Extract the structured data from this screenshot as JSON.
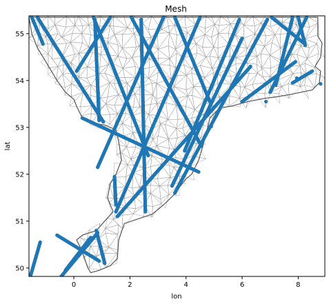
{
  "chart_data": {
    "type": "scatter",
    "title": "Mesh",
    "xlabel": "lon",
    "ylabel": "lat",
    "xlim": [
      -1.6,
      8.95
    ],
    "ylim": [
      49.82,
      55.38
    ],
    "xticks": [
      0,
      2,
      4,
      6,
      8
    ],
    "yticks": [
      50,
      51,
      52,
      53,
      54,
      55
    ],
    "grid": false,
    "colors": {
      "points": "#1f77b4",
      "mesh": "#999999",
      "coast": "#555555"
    },
    "coastline": [
      [
        -1.6,
        55.35
      ],
      [
        8.7,
        55.35
      ],
      [
        8.7,
        54.95
      ],
      [
        8.85,
        54.8
      ],
      [
        8.8,
        54.5
      ],
      [
        8.6,
        54.3
      ],
      [
        8.8,
        54.2
      ],
      [
        8.75,
        53.95
      ],
      [
        8.5,
        53.8
      ],
      [
        8.1,
        53.75
      ],
      [
        7.7,
        53.7
      ],
      [
        7.2,
        53.65
      ],
      [
        6.8,
        53.62
      ],
      [
        6.2,
        53.55
      ],
      [
        5.6,
        53.45
      ],
      [
        5.2,
        53.42
      ],
      [
        4.85,
        53.2
      ],
      [
        4.75,
        52.95
      ],
      [
        4.6,
        52.6
      ],
      [
        4.45,
        52.3
      ],
      [
        4.2,
        52.0
      ],
      [
        4.0,
        51.9
      ],
      [
        3.8,
        51.75
      ],
      [
        3.55,
        51.55
      ],
      [
        3.2,
        51.35
      ],
      [
        2.8,
        51.15
      ],
      [
        2.3,
        51.05
      ],
      [
        1.8,
        50.95
      ],
      [
        1.6,
        50.6
      ],
      [
        1.55,
        50.2
      ],
      [
        1.3,
        50.05
      ],
      [
        0.9,
        49.95
      ],
      [
        0.6,
        49.9
      ],
      [
        0.5,
        50.0
      ],
      [
        0.3,
        50.35
      ],
      [
        0.1,
        50.6
      ],
      [
        0.3,
        50.7
      ],
      [
        0.8,
        50.8
      ],
      [
        1.1,
        51.0
      ],
      [
        1.4,
        51.2
      ],
      [
        1.2,
        51.5
      ],
      [
        1.3,
        51.8
      ],
      [
        1.5,
        52.0
      ],
      [
        1.7,
        52.3
      ],
      [
        1.6,
        52.7
      ],
      [
        1.5,
        52.95
      ],
      [
        1.1,
        53.05
      ],
      [
        0.6,
        53.1
      ],
      [
        0.3,
        53.2
      ],
      [
        0.1,
        53.45
      ],
      [
        0.0,
        53.6
      ],
      [
        -0.3,
        53.75
      ],
      [
        -0.6,
        54.0
      ],
      [
        -1.0,
        54.4
      ],
      [
        -1.3,
        54.7
      ],
      [
        -1.5,
        55.0
      ],
      [
        -1.6,
        55.35
      ]
    ],
    "tracks": [
      {
        "from": [
          -1.5,
          55.35
        ],
        "to": [
          -1.1,
          54.78
        ]
      },
      {
        "from": [
          -1.3,
          55.35
        ],
        "to": [
          1.05,
          53.12
        ]
      },
      {
        "from": [
          1.3,
          55.35
        ],
        "to": [
          0.1,
          54.2
        ]
      },
      {
        "from": [
          0.7,
          55.35
        ],
        "to": [
          2.65,
          52.4
        ]
      },
      {
        "from": [
          0.75,
          55.3
        ],
        "to": [
          0.9,
          53.15
        ]
      },
      {
        "from": [
          3.2,
          55.35
        ],
        "to": [
          0.85,
          52.15
        ]
      },
      {
        "from": [
          2.4,
          55.3
        ],
        "to": [
          2.55,
          51.2
        ]
      },
      {
        "from": [
          4.5,
          55.35
        ],
        "to": [
          1.5,
          51.2
        ]
      },
      {
        "from": [
          3.6,
          55.35
        ],
        "to": [
          4.85,
          53.55
        ]
      },
      {
        "from": [
          2.05,
          55.35
        ],
        "to": [
          4.55,
          52.6
        ]
      },
      {
        "from": [
          6.9,
          55.3
        ],
        "to": [
          3.6,
          51.6
        ]
      },
      {
        "from": [
          0.3,
          53.2
        ],
        "to": [
          4.45,
          52.05
        ]
      },
      {
        "from": [
          5.9,
          55.3
        ],
        "to": [
          3.95,
          52.5
        ]
      },
      {
        "from": [
          6.0,
          54.9
        ],
        "to": [
          3.5,
          51.75
        ]
      },
      {
        "from": [
          6.3,
          54.3
        ],
        "to": [
          1.55,
          51.1
        ]
      },
      {
        "from": [
          7.9,
          54.4
        ],
        "to": [
          6.0,
          53.55
        ]
      },
      {
        "from": [
          8.3,
          55.35
        ],
        "to": [
          7.0,
          53.75
        ]
      },
      {
        "from": [
          7.8,
          55.35
        ],
        "to": [
          7.2,
          53.9
        ]
      },
      {
        "from": [
          7.05,
          55.35
        ],
        "to": [
          8.2,
          54.8
        ]
      },
      {
        "from": [
          8.0,
          55.35
        ],
        "to": [
          8.25,
          54.75
        ]
      },
      {
        "from": [
          -0.6,
          50.7
        ],
        "to": [
          0.9,
          50.15
        ]
      },
      {
        "from": [
          1.45,
          51.95
        ],
        "to": [
          1.5,
          51.35
        ]
      },
      {
        "from": [
          -1.2,
          50.55
        ],
        "to": [
          -1.55,
          49.82
        ]
      },
      {
        "from": [
          -0.45,
          49.82
        ],
        "to": [
          0.85,
          50.75
        ]
      },
      {
        "from": [
          -0.3,
          49.95
        ],
        "to": [
          0.6,
          50.65
        ]
      },
      {
        "from": [
          0.8,
          50.8
        ],
        "to": [
          1.1,
          50.1
        ]
      },
      {
        "from": [
          7.8,
          53.95
        ],
        "to": [
          8.5,
          54.2
        ]
      }
    ],
    "singles": [
      [
        6.85,
        53.55
      ],
      [
        4.9,
        53.02
      ],
      [
        8.8,
        53.93
      ],
      [
        7.95,
        54.05
      ]
    ]
  }
}
